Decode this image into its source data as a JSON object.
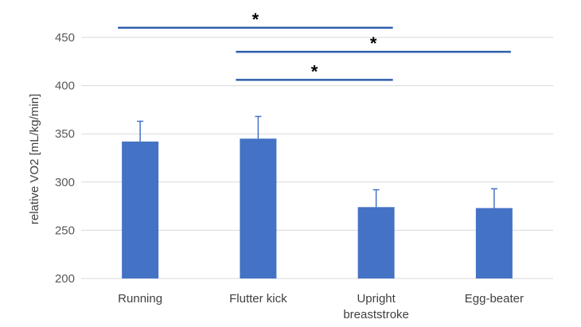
{
  "chart_data": {
    "type": "bar",
    "categories": [
      [
        "Running"
      ],
      [
        "Flutter kick"
      ],
      [
        "Upright",
        "breaststroke"
      ],
      [
        "Egg-beater"
      ]
    ],
    "values": [
      342,
      345,
      274,
      273
    ],
    "error_plus": [
      21,
      23,
      18,
      20
    ],
    "ylabel": "relative VO2 [mL/kg/min]",
    "ylim": [
      200,
      450
    ],
    "yticks": [
      200,
      250,
      300,
      350,
      400,
      450
    ],
    "grid": true,
    "bar_color": "#4472c4",
    "significance": [
      {
        "from": 0,
        "to": 2,
        "y": 460,
        "label": "*"
      },
      {
        "from": 1,
        "to": 3,
        "y": 435,
        "label": "*"
      },
      {
        "from": 1,
        "to": 2,
        "y": 406,
        "label": "*"
      }
    ]
  }
}
